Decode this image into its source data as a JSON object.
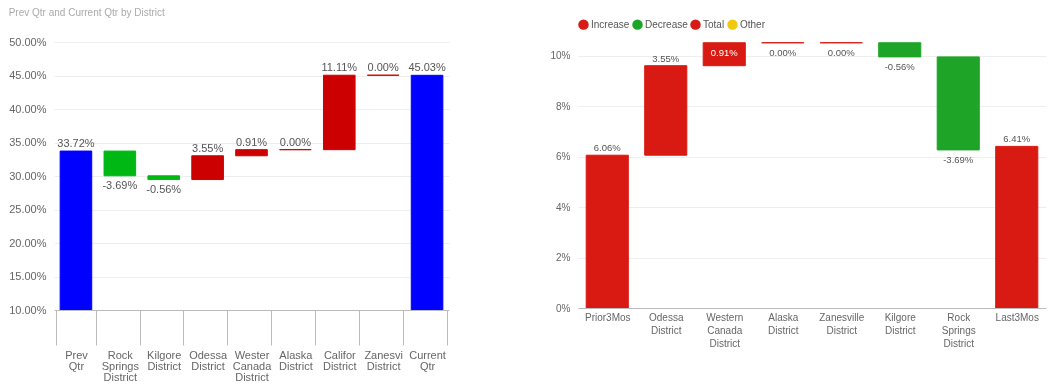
{
  "chart_data": [
    {
      "type": "bar",
      "title": "Prev Qtr and Current Qtr by District",
      "categories": [
        "Prev Qtr",
        "Rock Springs District",
        "Kilgore District",
        "Odessa District",
        "Wester Canada District",
        "Alaska District",
        "Califor District",
        "Zanesvi District",
        "Current Qtr"
      ],
      "values": [
        33.72,
        -3.69,
        -0.56,
        3.55,
        0.91,
        0.0,
        11.11,
        0.0,
        45.03
      ],
      "base": [
        null,
        33.72,
        30.03,
        29.47,
        33.02,
        33.93,
        33.93,
        45.04,
        null
      ],
      "colors": [
        "#0000ff",
        "#00b814",
        "#00b814",
        "#cc0000",
        "#cc0000",
        "#cc0000",
        "#cc0000",
        "#cc0000",
        "#0000ff"
      ],
      "value_labels": [
        "33.72%",
        "-3.69%",
        "-0.56%",
        "3.55%",
        "0.91%",
        "0.00%",
        "11.11%",
        "0.00%",
        "45.03%"
      ],
      "ylim": [
        10,
        50
      ],
      "yticks": [
        {
          "value": 10,
          "label": "10.00%"
        },
        {
          "value": 15,
          "label": "15.00%"
        },
        {
          "value": 20,
          "label": "20.00%"
        },
        {
          "value": 25,
          "label": "25.00%"
        },
        {
          "value": 30,
          "label": "30.00%"
        },
        {
          "value": 35,
          "label": "35.00%"
        },
        {
          "value": 40,
          "label": "40.00%"
        },
        {
          "value": 45,
          "label": "45.00%"
        },
        {
          "value": 50,
          "label": "50.00%"
        }
      ],
      "grid": "y",
      "legend": false
    },
    {
      "type": "bar",
      "categories": [
        "Prior3Mos",
        "Odessa District",
        "Western Canada District",
        "Alaska District",
        "Zanesville District",
        "Kilgore District",
        "Rock Springs District",
        "Last3Mos"
      ],
      "series": [
        {
          "name": "Increase",
          "color": "#d91a12",
          "values": [
            null,
            3.55,
            0.91,
            0.0,
            0.0,
            null,
            null,
            null
          ],
          "base": [
            null,
            6.06,
            9.61,
            10.52,
            10.52,
            null,
            null,
            null
          ],
          "value_labels": [
            null,
            "3.55%",
            "0.91%",
            "0.00%",
            "0.00%",
            null,
            null,
            null
          ]
        },
        {
          "name": "Decrease",
          "color": "#1ea528",
          "values": [
            null,
            null,
            null,
            null,
            null,
            -0.56,
            -3.69,
            null
          ],
          "base": [
            null,
            null,
            null,
            null,
            null,
            10.52,
            9.96,
            null
          ],
          "value_labels": [
            null,
            null,
            null,
            null,
            null,
            "-0.56%",
            "-3.69%",
            null
          ]
        },
        {
          "name": "Total",
          "color": "#d91a12",
          "values": [
            6.06,
            null,
            null,
            null,
            null,
            null,
            null,
            6.41
          ],
          "value_labels": [
            "6.06%",
            null,
            null,
            null,
            null,
            null,
            null,
            "6.41%"
          ]
        },
        {
          "name": "Other",
          "color": "#f2c80f",
          "values": [
            null,
            null,
            null,
            null,
            null,
            null,
            null,
            null
          ]
        }
      ],
      "ylim": [
        0,
        10.55
      ],
      "yticks": [
        {
          "value": 0,
          "label": "0%"
        },
        {
          "value": 2,
          "label": "2%"
        },
        {
          "value": 4,
          "label": "4%"
        },
        {
          "value": 6,
          "label": "6%"
        },
        {
          "value": 8,
          "label": "8%"
        },
        {
          "value": 10,
          "label": "10%"
        }
      ],
      "grid": "y",
      "legend": "top left"
    }
  ]
}
